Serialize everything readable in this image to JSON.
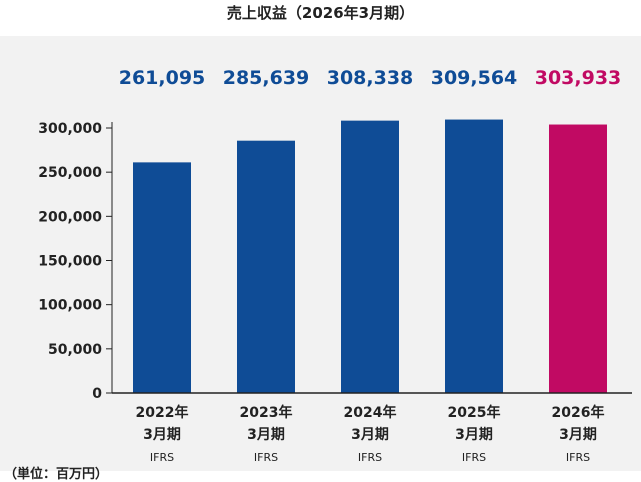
{
  "title": "売上収益（2026年3月期）",
  "unit_label": "（単位：百万円）",
  "colors": {
    "actual_bar": "#0f4c96",
    "forecast_bar": "#c10a63",
    "actual_label": "#0f4c96",
    "forecast_label": "#c10a63",
    "axis": "#222222",
    "grid": "#222222",
    "background": "#f2f2f2"
  },
  "chart_data": {
    "type": "bar",
    "categories": [
      {
        "year": "2022年",
        "period": "3月期",
        "standard": "IFRS"
      },
      {
        "year": "2023年",
        "period": "3月期",
        "standard": "IFRS"
      },
      {
        "year": "2024年",
        "period": "3月期",
        "standard": "IFRS"
      },
      {
        "year": "2025年",
        "period": "3月期",
        "standard": "IFRS"
      },
      {
        "year": "2026年",
        "period": "3月期",
        "standard": "IFRS"
      }
    ],
    "values": [
      261095,
      285639,
      308338,
      309564,
      303933
    ],
    "value_labels": [
      "261,095",
      "285,639",
      "308,338",
      "309,564",
      "303,933"
    ],
    "bar_color_keys": [
      "actual_bar",
      "actual_bar",
      "actual_bar",
      "actual_bar",
      "forecast_bar"
    ],
    "ylim": [
      0,
      300000
    ],
    "yticks": [
      0,
      50000,
      100000,
      150000,
      200000,
      250000,
      300000
    ],
    "ytick_labels": [
      "0",
      "50,000",
      "100,000",
      "150,000",
      "200,000",
      "250,000",
      "300,000"
    ],
    "grid": false
  }
}
